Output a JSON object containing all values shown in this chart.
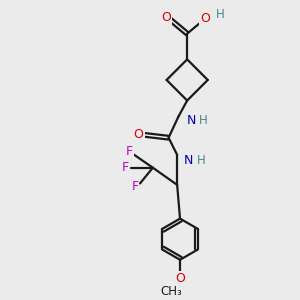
{
  "bg_color": "#ebebeb",
  "bond_color": "#1a1a1a",
  "colors": {
    "O": "#dd0000",
    "N": "#0000bb",
    "F": "#cc00cc",
    "C": "#1a1a1a",
    "H": "#448888"
  },
  "figsize": [
    3.0,
    3.0
  ],
  "dpi": 100
}
